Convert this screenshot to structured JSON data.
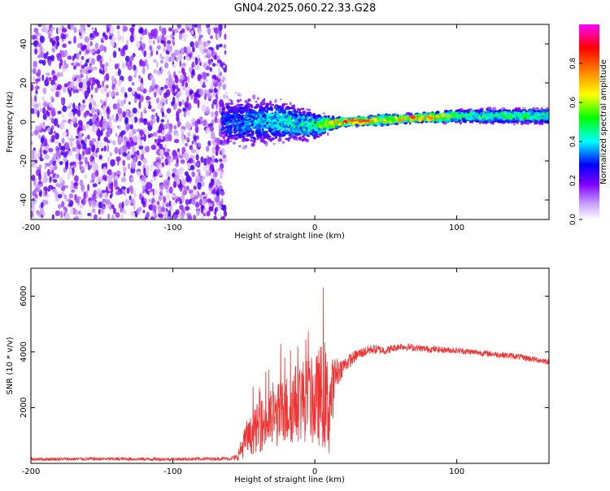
{
  "title": "GN04.2025.060.22.33.G28",
  "chart_data": [
    {
      "type": "heatmap",
      "xlabel": "Height of straight line (km)",
      "ylabel": "Frequency (Hz)",
      "xlim": [
        -200,
        165
      ],
      "ylim": [
        -50,
        50
      ],
      "xticks": [
        "-200",
        "-100",
        "0",
        "100"
      ],
      "xtick_values": [
        -200,
        -100,
        0,
        100
      ],
      "yticks": [
        "-40",
        "-20",
        "0",
        "20",
        "40"
      ],
      "ytick_values": [
        -40,
        -20,
        0,
        20,
        40
      ],
      "colorbar": {
        "label": "Normalized spectral amplitude",
        "range": [
          0,
          1
        ],
        "ticks": [
          "0.0",
          "0.2",
          "0.4",
          "0.6",
          "0.8"
        ],
        "tick_values": [
          0,
          0.2,
          0.4,
          0.6,
          0.8
        ],
        "colors": [
          "#ffffff",
          "#8000ff",
          "#0000ff",
          "#00ffff",
          "#00ff00",
          "#ffff00",
          "#ff8000",
          "#ff0000",
          "#ff00ff"
        ]
      },
      "ridge": [
        {
          "x": -65,
          "freq": 0,
          "spread": 10,
          "amp": 0.35
        },
        {
          "x": -40,
          "freq": 0,
          "spread": 9,
          "amp": 0.45
        },
        {
          "x": -20,
          "freq": 0,
          "spread": 8,
          "amp": 0.5
        },
        {
          "x": 0,
          "freq": -2,
          "spread": 5,
          "amp": 0.55
        },
        {
          "x": 10,
          "freq": -1,
          "spread": 3,
          "amp": 0.75
        },
        {
          "x": 20,
          "freq": 0,
          "spread": 1.5,
          "amp": 0.95
        },
        {
          "x": 50,
          "freq": 1,
          "spread": 2,
          "amp": 0.8
        },
        {
          "x": 70,
          "freq": 2,
          "spread": 1.5,
          "amp": 0.92
        },
        {
          "x": 90,
          "freq": 2.5,
          "spread": 2,
          "amp": 0.85
        },
        {
          "x": 100,
          "freq": 3,
          "spread": 2.5,
          "amp": 0.6
        },
        {
          "x": 165,
          "freq": 3,
          "spread": 3,
          "amp": 0.55
        }
      ]
    },
    {
      "type": "line",
      "xlabel": "Height of straight line (km)",
      "ylabel": "SNR (10 * v/v)",
      "xlim": [
        -200,
        165
      ],
      "ylim": [
        0,
        7000
      ],
      "xticks": [
        "-200",
        "-100",
        "0",
        "100"
      ],
      "xtick_values": [
        -200,
        -100,
        0,
        100
      ],
      "yticks": [
        "2000",
        "4000",
        "6000"
      ],
      "ytick_values": [
        2000,
        4000,
        6000
      ],
      "line_color": "#f03232",
      "series": [
        {
          "x": [
            -200,
            -150,
            -100,
            -60,
            -55,
            -50,
            -45,
            -40,
            -30,
            -20,
            -10,
            0,
            5,
            10,
            15,
            20,
            30,
            40,
            50,
            60,
            80,
            100,
            120,
            140,
            165
          ],
          "y": [
            150,
            160,
            150,
            170,
            200,
            700,
            1000,
            1300,
            1600,
            1900,
            2300,
            2200,
            2500,
            2000,
            3200,
            3500,
            3900,
            4100,
            4050,
            4200,
            4100,
            4050,
            3950,
            3850,
            3650
          ],
          "spread": [
            60,
            60,
            60,
            60,
            120,
            500,
            700,
            900,
            1100,
            1300,
            1500,
            1600,
            1900,
            1800,
            600,
            300,
            200,
            180,
            150,
            130,
            120,
            110,
            110,
            110,
            110
          ]
        }
      ]
    }
  ]
}
